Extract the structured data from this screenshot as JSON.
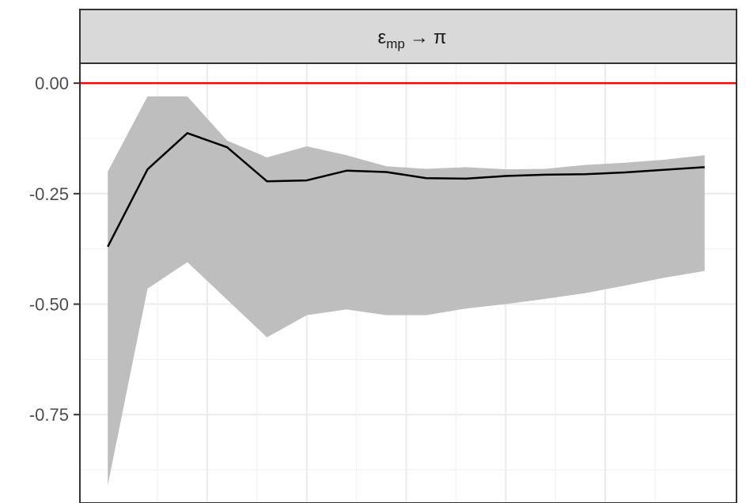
{
  "chart_data": {
    "type": "line",
    "panel_title": {
      "main": "ε",
      "subscript": "mp",
      "arrow": "→",
      "target": "π"
    },
    "x": [
      0,
      1,
      2,
      3,
      4,
      5,
      6,
      7,
      8,
      9,
      10,
      11,
      12,
      13,
      14,
      15
    ],
    "xlim": [
      -0.7,
      15.8
    ],
    "ylim": [
      -0.95,
      0.045
    ],
    "y_ticks": [
      0.0,
      -0.25,
      -0.5,
      -0.75
    ],
    "y_tick_labels": [
      "0.00",
      "-0.25",
      "-0.50",
      "-0.75"
    ],
    "x_major_breaks": [
      2.5,
      5,
      7.5,
      10,
      12.5
    ],
    "series": [
      {
        "role": "estimate",
        "values": [
          -0.37,
          -0.195,
          -0.113,
          -0.145,
          -0.222,
          -0.22,
          -0.198,
          -0.201,
          -0.215,
          -0.216,
          -0.21,
          -0.207,
          -0.206,
          -0.202,
          -0.196,
          -0.19
        ],
        "color": "#000000"
      }
    ],
    "band": {
      "upper": [
        -0.2,
        -0.03,
        -0.03,
        -0.13,
        -0.168,
        -0.143,
        -0.163,
        -0.188,
        -0.194,
        -0.19,
        -0.195,
        -0.194,
        -0.185,
        -0.18,
        -0.173,
        -0.163
      ],
      "lower": [
        -0.91,
        -0.465,
        -0.405,
        -0.49,
        -0.575,
        -0.525,
        -0.512,
        -0.525,
        -0.525,
        -0.51,
        -0.5,
        -0.488,
        -0.475,
        -0.458,
        -0.44,
        -0.425
      ],
      "color": "#bebebe"
    },
    "reference_line": {
      "y": 0.0,
      "color": "#ff0000"
    },
    "grid": true,
    "panel_border_color": "#333333",
    "strip_fill": "#d9d9d9"
  }
}
